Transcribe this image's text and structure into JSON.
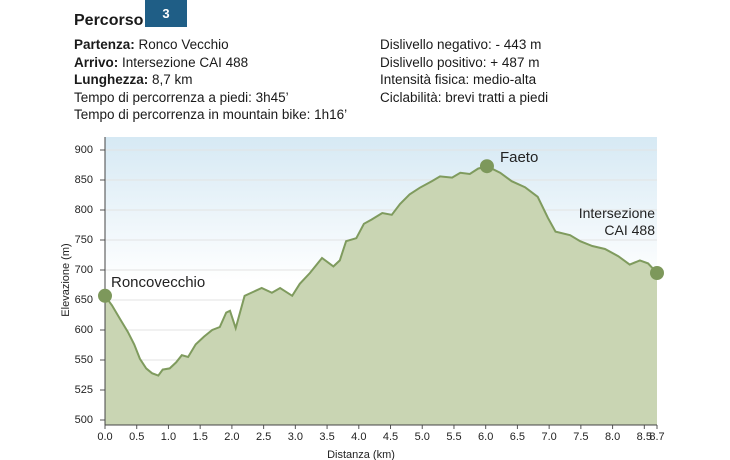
{
  "header": {
    "title": "Percorso",
    "badge": "3",
    "left": [
      {
        "label": "Partenza:",
        "value": "Ronco Vecchio"
      },
      {
        "label": "Arrivo:",
        "value": "Intersezione CAI 488"
      },
      {
        "label": "Lunghezza:",
        "value": "8,7 km"
      },
      {
        "label": "",
        "value": "Tempo di percorrenza a piedi: 3h45’"
      },
      {
        "label": "",
        "value": "Tempo di percorrenza in mountain bike: 1h16’"
      }
    ],
    "right": [
      "Dislivello negativo: - 443 m",
      "Dislivello positivo: + 487 m",
      "Intensità fisica: medio-alta",
      "Ciclabilità: brevi tratti a piedi"
    ]
  },
  "chart_data": {
    "type": "area",
    "x_label": "Distanza (km)",
    "y_label": "Elevazione (m)",
    "x": [
      0,
      0.11,
      0.24,
      0.36,
      0.46,
      0.55,
      0.65,
      0.74,
      0.84,
      0.91,
      1.02,
      1.12,
      1.21,
      1.31,
      1.43,
      1.56,
      1.69,
      1.81,
      1.91,
      1.97,
      2.06,
      2.2,
      2.47,
      2.63,
      2.76,
      2.95,
      3.07,
      3.23,
      3.42,
      3.6,
      3.7,
      3.8,
      3.96,
      4.08,
      4.2,
      4.37,
      4.52,
      4.65,
      4.8,
      4.96,
      5.15,
      5.28,
      5.47,
      5.6,
      5.75,
      5.88,
      6.02,
      6.23,
      6.41,
      6.62,
      6.82,
      6.98,
      7.1,
      7.33,
      7.49,
      7.68,
      7.88,
      8.09,
      8.27,
      8.43,
      8.56,
      8.7
    ],
    "values": [
      657,
      641,
      618,
      597,
      576,
      552,
      543,
      539,
      537,
      542,
      543,
      548,
      558,
      555,
      576,
      589,
      600,
      605,
      629,
      632,
      603,
      657,
      670,
      662,
      670,
      657,
      677,
      695,
      720,
      706,
      716,
      748,
      753,
      777,
      784,
      795,
      792,
      810,
      826,
      837,
      848,
      856,
      854,
      862,
      860,
      869,
      873,
      862,
      848,
      838,
      822,
      787,
      764,
      758,
      748,
      740,
      735,
      723,
      709,
      716,
      711,
      695
    ],
    "color": "#c9d5b3",
    "line_color": "#7f9b5e",
    "marker_color": "#7d985b",
    "annotations": [
      {
        "text": "Roncovecchio",
        "x": 0,
        "y": 657
      },
      {
        "text": "Faeto",
        "x": 6.02,
        "y": 873
      },
      {
        "text": "Intersezione CAI 488",
        "x": 8.7,
        "y": 695
      }
    ],
    "xlim": [
      0,
      8.7
    ],
    "ylim": [
      500,
      900
    ],
    "xticks": [
      {
        "value": 0,
        "label": "0.0"
      },
      0.5,
      {
        "value": 1,
        "label": "1.0"
      },
      1.5,
      {
        "value": 2,
        "label": "2.0"
      },
      2.5,
      {
        "value": 3,
        "label": "3.0"
      },
      3.5,
      {
        "value": 4,
        "label": "4.0"
      },
      4.5,
      {
        "value": 5,
        "label": "5.0"
      },
      5.5,
      {
        "value": 6,
        "label": "6.0"
      },
      6.5,
      {
        "value": 7,
        "label": "7.0"
      },
      7.5,
      {
        "value": 8,
        "label": "8.0"
      },
      8.5,
      8.7
    ],
    "yticks": [
      900,
      850,
      800,
      750,
      700,
      650,
      600,
      550,
      525,
      500
    ],
    "grid": true
  }
}
